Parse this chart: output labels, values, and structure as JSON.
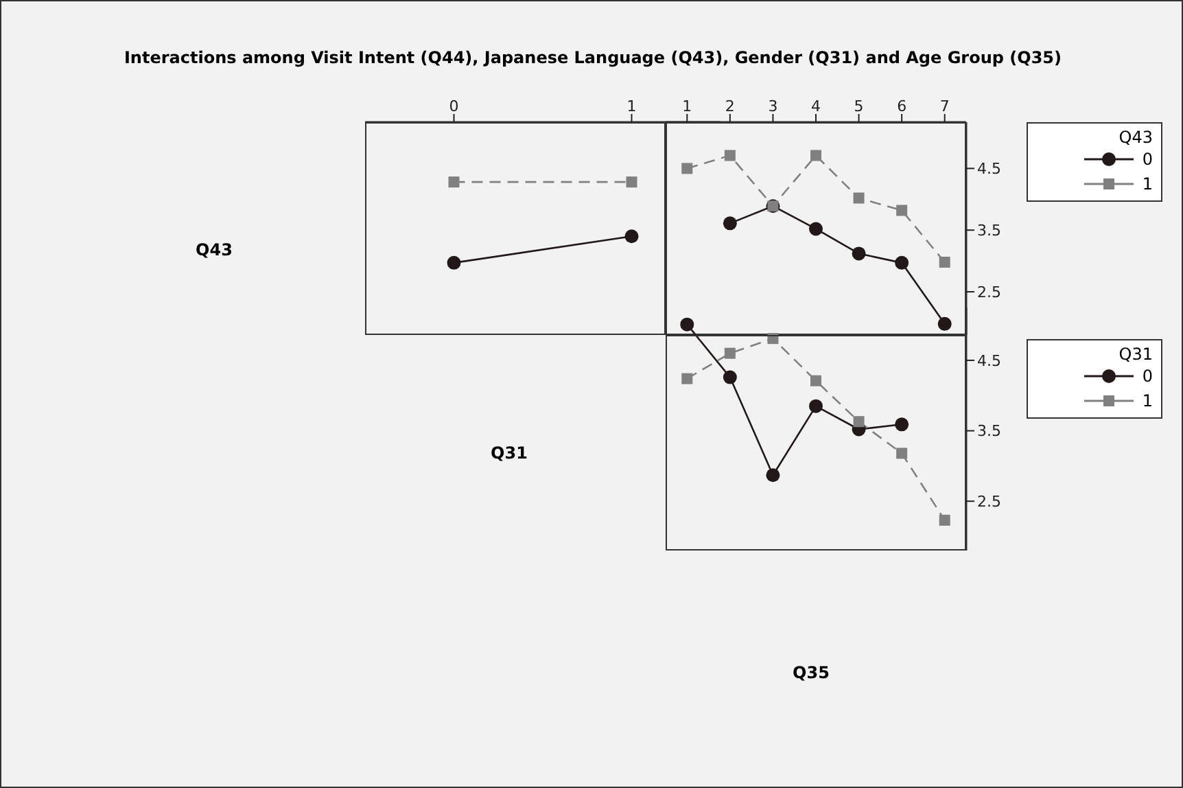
{
  "chart_data": [
    {
      "type": "line",
      "title": "Interactions among Visit Intent (Q44), Japanese Language (Q43), Gender (Q31) and Age Group (Q35)",
      "annotations": [
        "Q43",
        "Q31"
      ],
      "x": [
        0,
        1
      ],
      "xlim": [
        -0.5,
        1.5
      ],
      "xticks": [
        0,
        1
      ],
      "ylim": [
        1.8,
        5.25
      ],
      "yticks": [
        2.5,
        3.5,
        4.5
      ],
      "tick_labels": "x",
      "grid": false,
      "legend": false,
      "series": [
        {
          "color": "#231818",
          "marker": "circle",
          "line_style": "solid",
          "values": [
            2.97,
            3.4
          ]
        },
        {
          "color": "#808080",
          "marker": "square",
          "line_style": "dashed",
          "values": [
            4.28,
            4.28
          ]
        }
      ]
    },
    {
      "type": "line",
      "legend_title": "Q43",
      "x": [
        1,
        2,
        3,
        4,
        5,
        6,
        7
      ],
      "xlim": [
        0.5,
        7.5
      ],
      "xticks": [
        1,
        2,
        3,
        4,
        5,
        6,
        7
      ],
      "ylim": [
        1.8,
        5.25
      ],
      "yticks": [
        2.5,
        3.5,
        4.5
      ],
      "grid": false,
      "legend": "right",
      "series": [
        {
          "name": "0",
          "color": "#231818",
          "marker": "circle",
          "line_style": "solid",
          "values": [
            null,
            3.61,
            3.89,
            3.52,
            3.12,
            2.97,
            1.98
          ]
        },
        {
          "name": "1",
          "color": "#808080",
          "marker": "square",
          "line_style": "dashed",
          "values": [
            4.5,
            4.71,
            3.89,
            4.71,
            4.02,
            3.82,
            2.98
          ]
        }
      ]
    },
    {
      "type": "line",
      "legend_title": "Q31",
      "annotations": [
        "Q35"
      ],
      "x": [
        1,
        2,
        3,
        4,
        5,
        6,
        7
      ],
      "xlim": [
        0.5,
        7.5
      ],
      "xticks": [
        1,
        2,
        3,
        4,
        5,
        6,
        7
      ],
      "ylim": [
        1.8,
        5.25
      ],
      "yticks": [
        2.5,
        3.5,
        4.5
      ],
      "tick_labels": "y",
      "grid": false,
      "legend": "right",
      "series": [
        {
          "name": "0",
          "color": "#231818",
          "marker": "circle",
          "line_style": "solid",
          "values": [
            5.01,
            4.26,
            2.87,
            3.85,
            3.52,
            3.59,
            null
          ]
        },
        {
          "name": "1",
          "color": "#808080",
          "marker": "square",
          "line_style": "dashed",
          "values": [
            4.24,
            4.6,
            4.81,
            4.21,
            3.63,
            3.18,
            2.23
          ]
        }
      ]
    }
  ]
}
